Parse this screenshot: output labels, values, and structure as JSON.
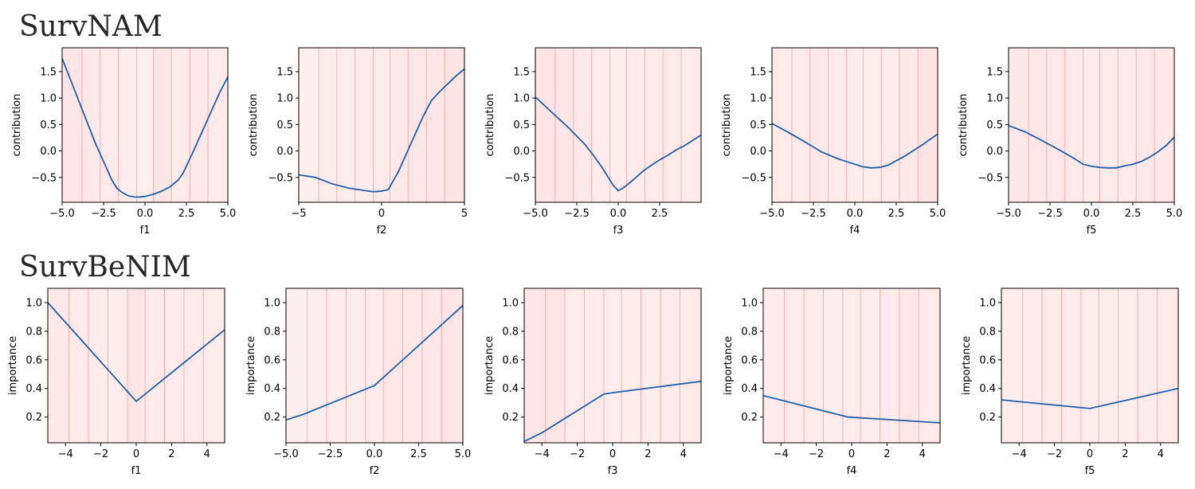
{
  "rows": [
    {
      "title": "SurvNAM"
    },
    {
      "title": "SurvBeNIM"
    }
  ],
  "colors": {
    "line": "#1f5fa8",
    "band_base": "#ffe6e6",
    "band_divider": "#f4a0a0",
    "frame": "#000000"
  },
  "chart_data": [
    {
      "type": "line",
      "row": 0,
      "col": 0,
      "xlabel": "f1",
      "ylabel": "contribution",
      "xlim": [
        -5,
        5
      ],
      "ylim": [
        -0.97,
        1.95
      ],
      "xticks": [
        -5,
        -2.5,
        0,
        2.5,
        5
      ],
      "xtick_labels": [
        "−5.0",
        "−2.5",
        "0.0",
        "2.5",
        "5.0"
      ],
      "yticks": [
        -0.5,
        0,
        0.5,
        1,
        1.5
      ],
      "ytick_labels": [
        "−0.5",
        "0.0",
        "0.5",
        "1.0",
        "1.5"
      ],
      "bands": [
        -5,
        -3.8,
        -2.7,
        -1.6,
        -0.5,
        0.5,
        1.6,
        2.7,
        3.8,
        5
      ],
      "band_alpha": [
        0.85,
        0.7,
        0.6,
        0.45,
        0.3,
        0.8,
        0.55,
        0.7,
        0.6
      ],
      "x": [
        -5,
        -4.5,
        -4,
        -3.5,
        -3,
        -2.5,
        -2,
        -1.7,
        -1.4,
        -1,
        -0.6,
        -0.3,
        0,
        0.5,
        1,
        1.5,
        2,
        2.3,
        2.7,
        3,
        3.5,
        4,
        4.5,
        5
      ],
      "y": [
        1.75,
        1.35,
        0.95,
        0.55,
        0.15,
        -0.2,
        -0.55,
        -0.7,
        -0.78,
        -0.85,
        -0.87,
        -0.87,
        -0.86,
        -0.82,
        -0.76,
        -0.68,
        -0.55,
        -0.42,
        -0.15,
        0.05,
        0.4,
        0.75,
        1.1,
        1.4
      ]
    },
    {
      "type": "line",
      "row": 0,
      "col": 1,
      "xlabel": "f2",
      "ylabel": "contribution",
      "xlim": [
        -5,
        5
      ],
      "ylim": [
        -0.97,
        1.95
      ],
      "xticks": [
        -5,
        0,
        5
      ],
      "xtick_labels": [
        "−5",
        "0",
        "5"
      ],
      "yticks": [
        -0.5,
        0,
        0.5,
        1,
        1.5
      ],
      "ytick_labels": [
        "−0.5",
        "0.0",
        "0.5",
        "1.0",
        "1.5"
      ],
      "bands": [
        -5,
        -3.8,
        -2.7,
        -1.6,
        -0.5,
        0.5,
        1.6,
        2.7,
        3.8,
        5
      ],
      "band_alpha": [
        0.3,
        0.4,
        0.45,
        0.5,
        0.55,
        0.7,
        0.75,
        0.8,
        0.9
      ],
      "x": [
        -5,
        -4,
        -3,
        -2,
        -1,
        -0.5,
        0,
        0.4,
        1,
        1.5,
        2,
        2.5,
        3,
        3.5,
        4,
        4.5,
        5
      ],
      "y": [
        -0.45,
        -0.5,
        -0.62,
        -0.7,
        -0.75,
        -0.77,
        -0.76,
        -0.73,
        -0.4,
        -0.05,
        0.3,
        0.65,
        0.95,
        1.12,
        1.27,
        1.42,
        1.55
      ]
    },
    {
      "type": "line",
      "row": 0,
      "col": 2,
      "xlabel": "f3",
      "ylabel": "contribution",
      "xlim": [
        -5,
        5
      ],
      "ylim": [
        -0.97,
        1.95
      ],
      "xticks": [
        -5,
        -2.5,
        0,
        2.5
      ],
      "xtick_labels": [
        "−5.0",
        "−2.5",
        "0.0",
        "2.5"
      ],
      "yticks": [
        -0.5,
        0,
        0.5,
        1,
        1.5
      ],
      "ytick_labels": [
        "−0.5",
        "0.0",
        "0.5",
        "1.0",
        "1.5"
      ],
      "bands": [
        -5,
        -3.8,
        -2.7,
        -1.6,
        -0.5,
        0.5,
        1.6,
        2.7,
        3.8,
        5
      ],
      "band_alpha": [
        0.85,
        0.8,
        0.65,
        0.5,
        0.45,
        0.5,
        0.6,
        0.55,
        0.5
      ],
      "x": [
        -5,
        -4,
        -3,
        -2.5,
        -2,
        -1.5,
        -1,
        -0.6,
        -0.3,
        0,
        0.3,
        0.7,
        1,
        1.5,
        2,
        2.5,
        3,
        3.5,
        4,
        4.5,
        5
      ],
      "y": [
        1.02,
        0.73,
        0.44,
        0.28,
        0.12,
        -0.08,
        -0.3,
        -0.5,
        -0.65,
        -0.75,
        -0.7,
        -0.6,
        -0.52,
        -0.38,
        -0.27,
        -0.17,
        -0.08,
        0.02,
        0.1,
        0.2,
        0.3
      ]
    },
    {
      "type": "line",
      "row": 0,
      "col": 3,
      "xlabel": "f4",
      "ylabel": "contribution",
      "xlim": [
        -5,
        5
      ],
      "ylim": [
        -0.97,
        1.95
      ],
      "xticks": [
        -5,
        -2.5,
        0,
        2.5,
        5
      ],
      "xtick_labels": [
        "−5.0",
        "−2.5",
        "0.0",
        "2.5",
        "5.0"
      ],
      "yticks": [
        -0.5,
        0,
        0.5,
        1,
        1.5
      ],
      "ytick_labels": [
        "−0.5",
        "0.0",
        "0.5",
        "1.0",
        "1.5"
      ],
      "bands": [
        -5,
        -3.8,
        -2.7,
        -1.6,
        -0.5,
        0.5,
        1.6,
        2.7,
        3.8,
        5
      ],
      "band_alpha": [
        0.55,
        0.6,
        0.65,
        0.5,
        0.4,
        0.45,
        0.55,
        0.7,
        0.9
      ],
      "x": [
        -5,
        -4,
        -3,
        -2,
        -1,
        0,
        0.5,
        1,
        1.5,
        2,
        3,
        4,
        5
      ],
      "y": [
        0.52,
        0.35,
        0.17,
        -0.02,
        -0.15,
        -0.25,
        -0.3,
        -0.32,
        -0.31,
        -0.27,
        -0.1,
        0.1,
        0.32
      ]
    },
    {
      "type": "line",
      "row": 0,
      "col": 4,
      "xlabel": "f5",
      "ylabel": "contribution",
      "xlim": [
        -5,
        5
      ],
      "ylim": [
        -0.97,
        1.95
      ],
      "xticks": [
        -5,
        -2.5,
        0,
        2.5,
        5
      ],
      "xtick_labels": [
        "−5.0",
        "−2.5",
        "0.0",
        "2.5",
        "5.0"
      ],
      "yticks": [
        -0.5,
        0,
        0.5,
        1,
        1.5
      ],
      "ytick_labels": [
        "−0.5",
        "0.0",
        "0.5",
        "1.0",
        "1.5"
      ],
      "bands": [
        -5,
        -3.8,
        -2.7,
        -1.6,
        -0.5,
        0.5,
        1.6,
        2.7,
        3.8,
        5
      ],
      "band_alpha": [
        0.7,
        0.75,
        0.65,
        0.6,
        0.5,
        0.55,
        0.6,
        0.65,
        0.7
      ],
      "x": [
        -5,
        -4,
        -3,
        -2,
        -1,
        -0.5,
        0,
        0.5,
        1,
        1.5,
        2,
        2.5,
        3,
        3.5,
        4,
        4.5,
        5
      ],
      "y": [
        0.48,
        0.36,
        0.2,
        0.03,
        -0.15,
        -0.25,
        -0.29,
        -0.31,
        -0.32,
        -0.32,
        -0.28,
        -0.25,
        -0.2,
        -0.12,
        -0.02,
        0.1,
        0.26
      ]
    },
    {
      "type": "line",
      "row": 1,
      "col": 0,
      "xlabel": "f1",
      "ylabel": "importance",
      "xlim": [
        -5,
        5
      ],
      "ylim": [
        0.02,
        1.1
      ],
      "xticks": [
        -4,
        -2,
        0,
        2,
        4
      ],
      "xtick_labels": [
        "−4",
        "−2",
        "0",
        "2",
        "4"
      ],
      "yticks": [
        0.2,
        0.4,
        0.6,
        0.8,
        1.0
      ],
      "ytick_labels": [
        "0.2",
        "0.4",
        "0.6",
        "0.8",
        "1.0"
      ],
      "bands": [
        -5,
        -3.8,
        -2.7,
        -1.6,
        -0.5,
        0.5,
        1.6,
        2.7,
        3.8,
        5
      ],
      "band_alpha": [
        0.7,
        0.6,
        0.5,
        0.35,
        0.8,
        0.55,
        0.5,
        0.6,
        0.55
      ],
      "x": [
        -5,
        0,
        0.5,
        5
      ],
      "y": [
        1.0,
        0.31,
        0.36,
        0.81
      ]
    },
    {
      "type": "line",
      "row": 1,
      "col": 1,
      "xlabel": "f2",
      "ylabel": "importance",
      "xlim": [
        -5,
        5
      ],
      "ylim": [
        0.02,
        1.1
      ],
      "xticks": [
        -5,
        -2.5,
        0,
        2.5,
        5
      ],
      "xtick_labels": [
        "−5.0",
        "−2.5",
        "0.0",
        "2.5",
        "5.0"
      ],
      "yticks": [
        0.2,
        0.4,
        0.6,
        0.8,
        1.0
      ],
      "ytick_labels": [
        "0.2",
        "0.4",
        "0.6",
        "0.8",
        "1.0"
      ],
      "bands": [
        -5,
        -3.8,
        -2.7,
        -1.6,
        -0.5,
        0.5,
        1.6,
        2.7,
        3.8,
        5
      ],
      "band_alpha": [
        0.3,
        0.35,
        0.4,
        0.45,
        0.5,
        0.75,
        0.7,
        0.75,
        0.85
      ],
      "x": [
        -5,
        -4,
        0,
        5
      ],
      "y": [
        0.18,
        0.22,
        0.42,
        0.98
      ]
    },
    {
      "type": "line",
      "row": 1,
      "col": 2,
      "xlabel": "f3",
      "ylabel": "importance",
      "xlim": [
        -5,
        5
      ],
      "ylim": [
        0.02,
        1.1
      ],
      "xticks": [
        -4,
        -2,
        0,
        2,
        4
      ],
      "xtick_labels": [
        "−4",
        "−2",
        "0",
        "2",
        "4"
      ],
      "yticks": [
        0.2,
        0.4,
        0.6,
        0.8,
        1.0
      ],
      "ytick_labels": [
        "0.2",
        "0.4",
        "0.6",
        "0.8",
        "1.0"
      ],
      "bands": [
        -5,
        -3.8,
        -2.7,
        -1.6,
        -0.5,
        0.5,
        1.6,
        2.7,
        3.8,
        5
      ],
      "band_alpha": [
        0.8,
        0.85,
        0.6,
        0.5,
        0.4,
        0.45,
        0.45,
        0.5,
        0.55
      ],
      "x": [
        -5,
        -4,
        -0.5,
        0,
        5
      ],
      "y": [
        0.03,
        0.09,
        0.36,
        0.37,
        0.45
      ]
    },
    {
      "type": "line",
      "row": 1,
      "col": 3,
      "xlabel": "f4",
      "ylabel": "importance",
      "xlim": [
        -5,
        5
      ],
      "ylim": [
        0.02,
        1.1
      ],
      "xticks": [
        -4,
        -2,
        0,
        2,
        4
      ],
      "xtick_labels": [
        "−4",
        "−2",
        "0",
        "2",
        "4"
      ],
      "yticks": [
        0.2,
        0.4,
        0.6,
        0.8,
        1.0
      ],
      "ytick_labels": [
        "0.2",
        "0.4",
        "0.6",
        "0.8",
        "1.0"
      ],
      "bands": [
        -5,
        -3.8,
        -2.7,
        -1.6,
        -0.5,
        0.5,
        1.6,
        2.7,
        3.8,
        5
      ],
      "band_alpha": [
        0.5,
        0.55,
        0.5,
        0.45,
        0.4,
        0.45,
        0.5,
        0.75,
        0.6
      ],
      "x": [
        -5,
        -0.2,
        5
      ],
      "y": [
        0.35,
        0.2,
        0.16
      ]
    },
    {
      "type": "line",
      "row": 1,
      "col": 4,
      "xlabel": "f5",
      "ylabel": "importance",
      "xlim": [
        -5,
        5
      ],
      "ylim": [
        0.02,
        1.1
      ],
      "xticks": [
        -4,
        -2,
        0,
        2,
        4
      ],
      "xtick_labels": [
        "−4",
        "−2",
        "0",
        "2",
        "4"
      ],
      "yticks": [
        0.2,
        0.4,
        0.6,
        0.8,
        1.0
      ],
      "ytick_labels": [
        "0.2",
        "0.4",
        "0.6",
        "0.8",
        "1.0"
      ],
      "bands": [
        -5,
        -3.8,
        -2.7,
        -1.6,
        -0.5,
        0.5,
        1.6,
        2.7,
        3.8,
        5
      ],
      "band_alpha": [
        0.45,
        0.5,
        0.55,
        0.5,
        0.45,
        0.4,
        0.45,
        0.5,
        0.55
      ],
      "x": [
        -5,
        0,
        5
      ],
      "y": [
        0.32,
        0.26,
        0.4
      ]
    }
  ]
}
